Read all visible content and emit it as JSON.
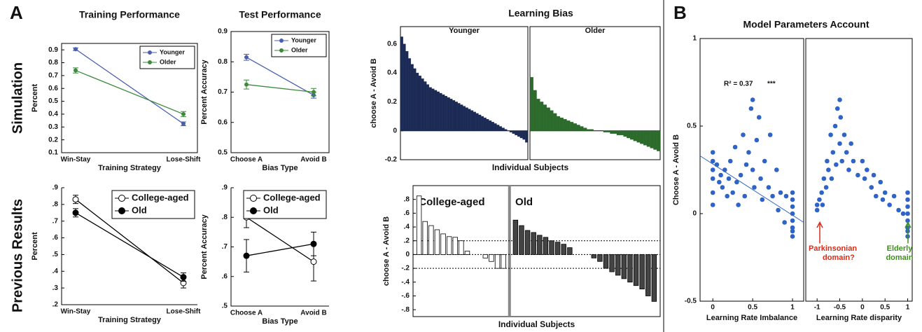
{
  "panel_labels": [
    "A",
    "B"
  ],
  "row_labels": [
    "Simulation",
    "Previous Results"
  ],
  "chart_data": [
    {
      "type": "line",
      "title": "Training Performance",
      "xlabel": "Training Strategy",
      "ylabel": "Percent",
      "categories": [
        "Win-Stay",
        "Lose-Shift"
      ],
      "series": [
        {
          "name": "Younger",
          "color": "#4a5fb0",
          "values": [
            0.905,
            0.325
          ],
          "errors": [
            0.01,
            0.015
          ]
        },
        {
          "name": "Older",
          "color": "#3d8a3d",
          "values": [
            0.74,
            0.4
          ],
          "errors": [
            0.02,
            0.02
          ]
        }
      ],
      "ylim": [
        0.1,
        0.95
      ],
      "yticks": [
        0.1,
        0.2,
        0.3,
        0.4,
        0.5,
        0.6,
        0.7,
        0.8,
        0.9
      ],
      "legend": "upper right"
    },
    {
      "type": "line",
      "title": "Test Performance",
      "xlabel": "Bias Type",
      "ylabel": "Percent Accuracy",
      "categories": [
        "Choose A",
        "Avoid B"
      ],
      "series": [
        {
          "name": "Younger",
          "color": "#4a5fb0",
          "values": [
            0.815,
            0.69
          ],
          "errors": [
            0.01,
            0.01
          ]
        },
        {
          "name": "Older",
          "color": "#3d8a3d",
          "values": [
            0.725,
            0.7
          ],
          "errors": [
            0.015,
            0.012
          ]
        }
      ],
      "ylim": [
        0.5,
        0.9
      ],
      "yticks": [
        0.5,
        0.6,
        0.7,
        0.8,
        0.9
      ],
      "legend": "upper right"
    },
    {
      "type": "bars",
      "title": "Learning Bias",
      "xlabel": "Individual Subjects",
      "ylabel": "choose A - Avoid B",
      "groups": [
        {
          "name": "Younger",
          "color": "#1c2b55",
          "values": [
            0.65,
            0.6,
            0.55,
            0.5,
            0.46,
            0.43,
            0.4,
            0.38,
            0.36,
            0.34,
            0.32,
            0.3,
            0.29,
            0.28,
            0.27,
            0.26,
            0.25,
            0.24,
            0.23,
            0.22,
            0.21,
            0.2,
            0.19,
            0.18,
            0.17,
            0.16,
            0.15,
            0.14,
            0.13,
            0.12,
            0.11,
            0.1,
            0.09,
            0.08,
            0.07,
            0.06,
            0.05,
            0.04,
            0.03,
            0.02,
            0.01,
            0,
            -0.01,
            -0.02,
            -0.03,
            -0.04,
            -0.05,
            -0.06,
            -0.08
          ]
        },
        {
          "name": "Older",
          "color": "#2d6b2d",
          "values": [
            0.37,
            0.28,
            0.22,
            0.2,
            0.18,
            0.16,
            0.14,
            0.12,
            0.1,
            0.09,
            0.08,
            0.07,
            0.06,
            0.05,
            0.04,
            0.03,
            0.02,
            0.01,
            0.01,
            0,
            0,
            0,
            -0.01,
            -0.01,
            -0.02,
            -0.02,
            -0.03,
            -0.03,
            -0.04,
            -0.05,
            -0.06,
            -0.07,
            -0.08,
            -0.09,
            -0.1,
            -0.11,
            -0.12,
            -0.13,
            -0.14
          ]
        }
      ],
      "ylim": [
        -0.2,
        0.72
      ],
      "yticks": [
        -0.2,
        0,
        0.2,
        0.4,
        0.6
      ]
    },
    {
      "type": "line",
      "xlabel": "Training Strategy",
      "ylabel": "Percent",
      "categories": [
        "Win-Stay",
        "Lose-Shift"
      ],
      "series": [
        {
          "name": "College-aged",
          "color": "#ffffff",
          "line_color": "#000000",
          "values": [
            0.83,
            0.33
          ],
          "errors": [
            0.025,
            0.03
          ]
        },
        {
          "name": "Old",
          "color": "#000000",
          "line_color": "#000000",
          "values": [
            0.75,
            0.365
          ],
          "errors": [
            0.025,
            0.025
          ]
        }
      ],
      "ylim": [
        0.2,
        0.9
      ],
      "yticks": [
        {
          "value": 0.2,
          "label": ".2"
        },
        {
          "value": 0.3,
          "label": ".3"
        },
        {
          "value": 0.4,
          "label": ".4"
        },
        {
          "value": 0.5,
          "label": ".5"
        },
        {
          "value": 0.6,
          "label": ".6"
        },
        {
          "value": 0.7,
          "label": ".7"
        },
        {
          "value": 0.8,
          "label": ".8"
        },
        {
          "value": 0.9,
          "label": ".9"
        }
      ],
      "legend": "upper right"
    },
    {
      "type": "line",
      "xlabel": "Bias Type",
      "ylabel": "Percent Accuracy",
      "categories": [
        "Choose A",
        "Avoid B"
      ],
      "series": [
        {
          "name": "College-aged",
          "color": "#ffffff",
          "line_color": "#000000",
          "values": [
            0.8,
            0.65
          ],
          "errors": [
            0.035,
            0.065
          ]
        },
        {
          "name": "Old",
          "color": "#000000",
          "line_color": "#000000",
          "values": [
            0.67,
            0.71
          ],
          "errors": [
            0.055,
            0.04
          ]
        }
      ],
      "ylim": [
        0.5,
        0.9
      ],
      "yticks": [
        {
          "value": 0.5,
          "label": ".5"
        },
        {
          "value": 0.6,
          "label": ".6"
        },
        {
          "value": 0.7,
          "label": ".7"
        },
        {
          "value": 0.8,
          "label": ".8"
        },
        {
          "value": 0.9,
          "label": ".9"
        }
      ],
      "legend": "upper right"
    },
    {
      "type": "bars",
      "xlabel": "Individual Subjects",
      "ylabel": "choose A - Avoid B",
      "groups": [
        {
          "name": "College-aged",
          "color": "#ffffff",
          "values": [
            0.85,
            0.48,
            0.42,
            0.36,
            0.3,
            0.26,
            0.25,
            0.2,
            0.05,
            null,
            null,
            -0.05,
            -0.1,
            -0.2,
            -0.2
          ]
        },
        {
          "name": "Old",
          "color": "#444444",
          "values": [
            0.5,
            0.42,
            0.35,
            0.32,
            0.28,
            0.25,
            0.2,
            0.18,
            0.15,
            0.1,
            null,
            null,
            null,
            -0.05,
            -0.1,
            -0.2,
            -0.25,
            -0.3,
            -0.35,
            -0.4,
            -0.45,
            -0.5,
            -0.6,
            -0.68
          ]
        }
      ],
      "ylim": [
        -0.9,
        1.0
      ],
      "reference_lines": [
        0.2,
        0,
        -0.2
      ],
      "yticks": [
        {
          "value": 0.8,
          "label": ".8"
        },
        {
          "value": 0.6,
          "label": ".6"
        },
        {
          "value": 0.4,
          "label": ".4"
        },
        {
          "value": 0.2,
          "label": ".2"
        },
        0,
        {
          "value": -0.2,
          "label": "-.2"
        },
        {
          "value": -0.4,
          "label": "-.4"
        },
        {
          "value": -0.6,
          "label": "-.6"
        },
        {
          "value": -0.8,
          "label": "-.8"
        }
      ]
    },
    {
      "type": "scatter",
      "title": "Model Parameters Account",
      "ylabel": "Choose A - Avoid B",
      "color": "#2f63c6",
      "stat": "R² = 0.37",
      "significance": "***",
      "ylim": [
        -0.5,
        1
      ],
      "yticks": [
        -0.5,
        0,
        0.5,
        1
      ],
      "panels": [
        {
          "xlabel": "Learning Rate Imbalance",
          "xlim": [
            -0.16,
            1.14
          ],
          "xticks": [
            0,
            0.5,
            1
          ],
          "x": [
            0,
            0,
            0,
            0,
            0,
            0,
            0.05,
            0.08,
            0.1,
            0.12,
            0.15,
            0.18,
            0.2,
            0.22,
            0.25,
            0.28,
            0.3,
            0.32,
            0.35,
            0.38,
            0.4,
            0.42,
            0.45,
            0.48,
            0.5,
            0.5,
            0.52,
            0.55,
            0.58,
            0.6,
            0.62,
            0.65,
            0.7,
            0.72,
            0.75,
            0.8,
            0.82,
            0.85,
            0.9,
            0.92,
            1,
            1,
            1,
            1,
            1,
            1,
            1,
            1
          ],
          "y": [
            0.35,
            0.3,
            0.25,
            0.2,
            0.12,
            0.05,
            0.28,
            0.18,
            0.22,
            0.15,
            0.25,
            0.1,
            0.2,
            0.3,
            0.12,
            0.38,
            0.18,
            0.05,
            0.22,
            0.45,
            0.1,
            0.28,
            0.35,
            0.6,
            0.65,
            0.25,
            0.15,
            0.42,
            0.55,
            0.2,
            0.08,
            0.3,
            0.15,
            0.45,
            0.1,
            0.25,
            0.02,
            0.12,
            -0.05,
            0.1,
            0.12,
            0.08,
            0.04,
            0,
            -0.04,
            -0.08,
            -0.1,
            -0.13
          ],
          "fit": {
            "x": [
              -0.16,
              1.14
            ],
            "y": [
              0.33,
              -0.05
            ]
          }
        },
        {
          "xlabel": "Learning Rate disparity",
          "xlim": [
            -1.25,
            1.1
          ],
          "xticks": [
            -1,
            -0.5,
            0,
            0.5,
            1
          ],
          "x": [
            -1,
            -1,
            -0.95,
            -0.9,
            -0.88,
            -0.85,
            -0.8,
            -0.78,
            -0.75,
            -0.7,
            -0.68,
            -0.65,
            -0.6,
            -0.58,
            -0.55,
            -0.5,
            -0.5,
            -0.48,
            -0.45,
            -0.4,
            -0.35,
            -0.3,
            -0.25,
            -0.2,
            -0.1,
            0,
            0.05,
            0.1,
            0.2,
            0.25,
            0.3,
            0.4,
            0.45,
            0.5,
            0.6,
            0.7,
            0.8,
            0.9,
            1,
            1,
            1,
            1,
            1,
            1,
            1,
            1
          ],
          "y": [
            0.02,
            0.05,
            0.08,
            0.12,
            0.05,
            0.2,
            0.15,
            0.3,
            0.25,
            0.45,
            0.2,
            0.35,
            0.5,
            0.28,
            0.6,
            0.65,
            0.4,
            0.55,
            0.3,
            0.45,
            0.35,
            0.25,
            0.4,
            0.3,
            0.22,
            0.3,
            0.2,
            0.25,
            0.15,
            0.22,
            0.1,
            0.18,
            0.08,
            0.12,
            0.05,
            0.1,
            0.02,
            0,
            0.12,
            0.08,
            0.04,
            0,
            -0.04,
            -0.08,
            -0.1,
            -0.13
          ],
          "annotations": [
            {
              "text": [
                "Parkinsonian",
                "domain?"
              ],
              "color": "#d62c1a"
            },
            {
              "text": [
                "Elderly",
                "domain"
              ],
              "color": "#3f8f1f"
            }
          ]
        }
      ]
    }
  ]
}
